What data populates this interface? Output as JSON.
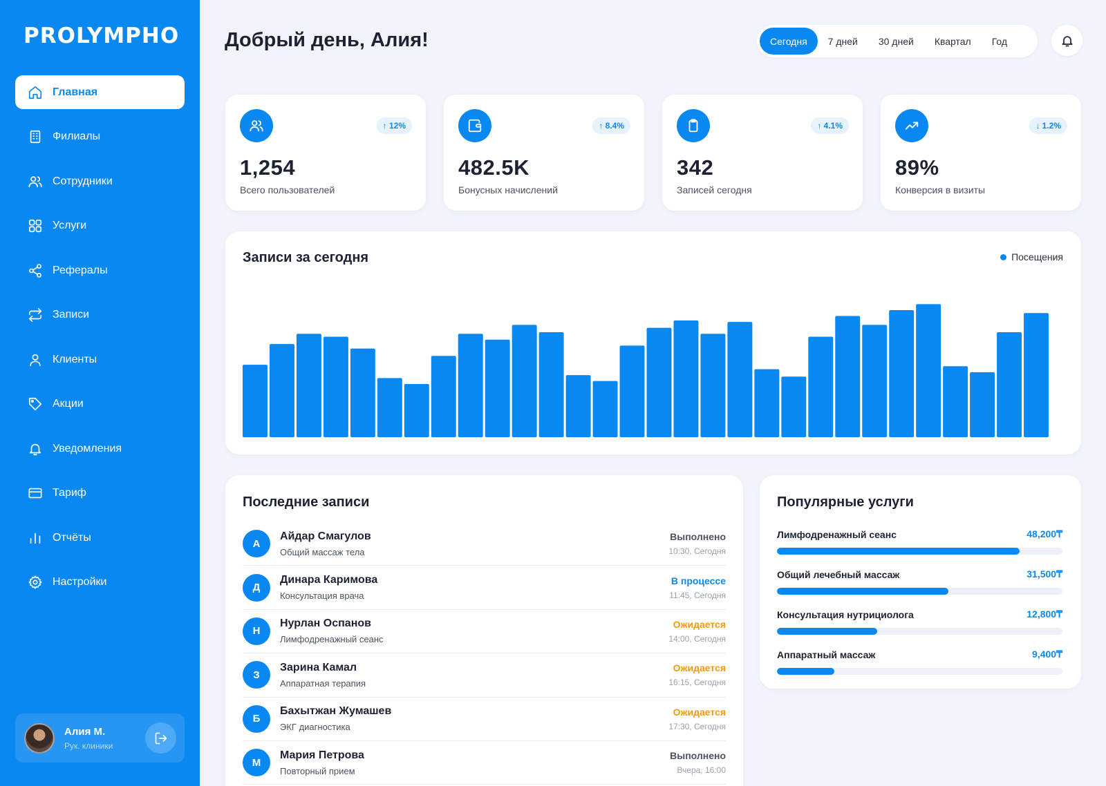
{
  "brand": {
    "logo_text": "PROLYMPHO"
  },
  "sidebar": {
    "items": [
      {
        "label": "Главная",
        "icon": "home-icon",
        "active": true
      },
      {
        "label": "Филиалы",
        "icon": "building-icon"
      },
      {
        "label": "Сотрудники",
        "icon": "users-icon"
      },
      {
        "label": "Услуги",
        "icon": "grid-icon"
      },
      {
        "label": "Рефералы",
        "icon": "share-icon"
      },
      {
        "label": "Записи",
        "icon": "repeat-icon"
      },
      {
        "label": "Клиенты",
        "icon": "user-icon"
      },
      {
        "label": "Акции",
        "icon": "tag-icon"
      },
      {
        "label": "Уведомления",
        "icon": "bell-icon"
      },
      {
        "label": "Тариф",
        "icon": "card-icon"
      },
      {
        "label": "Отчёты",
        "icon": "bar-chart-icon"
      },
      {
        "label": "Настройки",
        "icon": "gear-icon"
      }
    ],
    "user": {
      "name": "Алия М.",
      "role": "Рук. клиники"
    }
  },
  "header": {
    "greeting": "Добрый день, Алия!",
    "periods": [
      "Сегодня",
      "7 дней",
      "30 дней",
      "Квартал",
      "Год"
    ],
    "active_period": "Сегодня"
  },
  "stats": [
    {
      "value": "1,254",
      "label": "Всего пользователей",
      "change": "↑ 12%",
      "icon": "users-icon"
    },
    {
      "value": "482.5K",
      "label": "Бонусных начислений",
      "change": "↑ 8.4%",
      "icon": "wallet-icon"
    },
    {
      "value": "342",
      "label": "Записей сегодня",
      "change": "↑ 4.1%",
      "icon": "clipboard-icon"
    },
    {
      "value": "89%",
      "label": "Конверсия в визиты",
      "change": "↓ 1.2%",
      "icon": "trending-up-icon"
    }
  ],
  "chart_card": {
    "title": "Записи за сегодня",
    "legend": "Посещения"
  },
  "chart_data": {
    "type": "bar",
    "title": "Записи за сегодня",
    "series": [
      {
        "name": "Посещения",
        "values": [
          49,
          63,
          70,
          68,
          60,
          40,
          36,
          55,
          70,
          66,
          76,
          71,
          42,
          38,
          62,
          74,
          79,
          70,
          78,
          46,
          41,
          68,
          82,
          76,
          86,
          90,
          48,
          44,
          71,
          84
        ]
      }
    ],
    "color": "#0a88f2",
    "ylim": [
      0,
      100
    ],
    "grid": false
  },
  "recent": {
    "title": "Последние записи",
    "rows": [
      {
        "initial": "А",
        "name": "Айдар Смагулов",
        "service": "Общий массаж тела",
        "status": "Выполнено",
        "status_kind": "done",
        "time": "10:30, Сегодня"
      },
      {
        "initial": "Д",
        "name": "Динара Каримова",
        "service": "Консультация врача",
        "status": "В процессе",
        "status_kind": "progress",
        "time": "11:45, Сегодня"
      },
      {
        "initial": "Н",
        "name": "Нурлан Оспанов",
        "service": "Лимфодренажный сеанс",
        "status": "Ожидается",
        "status_kind": "wait",
        "time": "14:00, Сегодня"
      },
      {
        "initial": "З",
        "name": "Зарина Камал",
        "service": "Аппаратная терапия",
        "status": "Ожидается",
        "status_kind": "wait",
        "time": "16:15, Сегодня"
      },
      {
        "initial": "Б",
        "name": "Бахытжан Жумашев",
        "service": "ЭКГ диагностика",
        "status": "Ожидается",
        "status_kind": "wait",
        "time": "17:30, Сегодня"
      },
      {
        "initial": "М",
        "name": "Мария Петрова",
        "service": "Повторный прием",
        "status": "Выполнено",
        "status_kind": "done",
        "time": "Вчера, 16:00"
      }
    ]
  },
  "popular": {
    "title": "Популярные услуги",
    "items": [
      {
        "name": "Лимфодренажный сеанс",
        "amount": "48,200₸",
        "share": 0.85
      },
      {
        "name": "Общий лечебный массаж",
        "amount": "31,500₸",
        "share": 0.6
      },
      {
        "name": "Консультация нутрициолога",
        "amount": "12,800₸",
        "share": 0.35
      },
      {
        "name": "Аппаратный массаж",
        "amount": "9,400₸",
        "share": 0.2
      }
    ]
  }
}
